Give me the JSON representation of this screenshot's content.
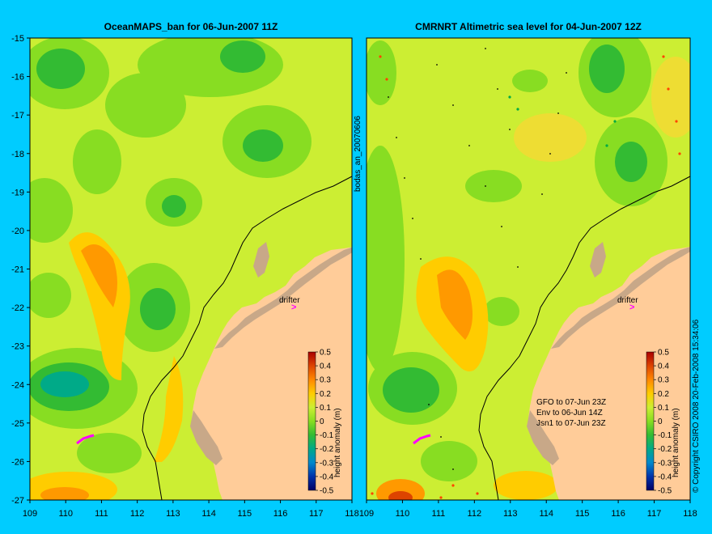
{
  "left_panel": {
    "title": "OceanMAPS_ban for 06-Jun-2007 11Z"
  },
  "right_panel": {
    "title": "CMRNRT Altimetric sea level  for 04-Jun-2007 12Z",
    "satellites": [
      "GFO to 07-Jun 23Z",
      "Env to 06-Jun 14Z",
      "Jsn1 to 07-Jun 23Z"
    ]
  },
  "side_label": "bodas_an_20070606",
  "copyright": "© Copyright CSIRO 2008   20-Feb-2008 15:34:06",
  "drifter_label": "drifter",
  "colorbar": {
    "label": "height anomaly (m)",
    "ticks": [
      "0.5",
      "0.4",
      "0.3",
      "0.2",
      "0.1",
      "0",
      "-0.1",
      "-0.2",
      "-0.3",
      "-0.4",
      "-0.5"
    ]
  },
  "axes": {
    "y_ticks": [
      "-15",
      "-16",
      "-17",
      "-18",
      "-19",
      "-20",
      "-21",
      "-22",
      "-23",
      "-24",
      "-25",
      "-26",
      "-27"
    ],
    "x_ticks_left": [
      "109",
      "110",
      "111",
      "112",
      "113",
      "114",
      "115",
      "116",
      "117",
      "118"
    ],
    "x_ticks_right": [
      "109",
      "110",
      "111",
      "112",
      "113",
      "114",
      "115",
      "116",
      "117",
      "118"
    ]
  },
  "colors": {
    "background": "#00ccff",
    "land": "#ffcc99",
    "reef": "#c8a888",
    "drifter": "#ff00ff"
  }
}
